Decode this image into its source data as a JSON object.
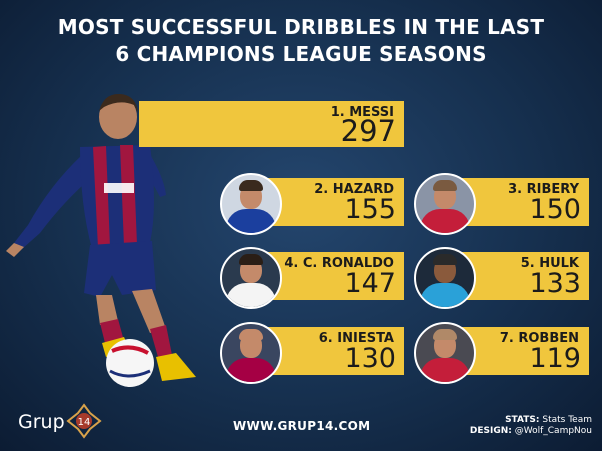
{
  "title": {
    "line1": "MOST SUCCESSFUL DRIBBLES IN THE LAST",
    "line2": "6 CHAMPIONS LEAGUE SEASONS"
  },
  "chart_data": {
    "type": "table",
    "title": "MOST SUCCESSFUL DRIBBLES IN THE LAST 6 CHAMPIONS LEAGUE SEASONS",
    "rows": [
      {
        "label": "1. MESSI",
        "value": 297
      },
      {
        "label": "2. HAZARD",
        "value": 155
      },
      {
        "label": "3. RIBERY",
        "value": 150
      },
      {
        "label": "4. C. RONALDO",
        "value": 147
      },
      {
        "label": "5. HULK",
        "value": 133
      },
      {
        "label": "6. INIESTA",
        "value": 130
      },
      {
        "label": "7. ROBBEN",
        "value": 119
      }
    ]
  },
  "avatars": [
    {
      "icon": "player-photo-icon",
      "kit": "#1b3f9e",
      "hair": "#3a2a1e"
    },
    {
      "icon": "player-photo-icon",
      "kit": "#c41e3a",
      "hair": "#7a5a40"
    },
    {
      "icon": "player-photo-icon",
      "kit": "#f4f4f4",
      "hair": "#2a1e16"
    },
    {
      "icon": "player-photo-icon",
      "kit": "#2aa1d8",
      "hair": "#2a2a2a"
    },
    {
      "icon": "player-photo-icon",
      "kit": "#a50044",
      "hair": "#c48a6a"
    },
    {
      "icon": "player-photo-icon",
      "kit": "#c41e3a",
      "hair": "#b08968"
    }
  ],
  "footer": {
    "logo_text": "Grup",
    "logo_number": "14",
    "url": "WWW.GRUP14.COM",
    "stats_label": "STATS:",
    "stats_value": "Stats Team",
    "design_label": "DESIGN:",
    "design_value": "@Wolf_CampNou"
  },
  "colors": {
    "card": "#f0c63d",
    "background": "#16304f",
    "text_on_card": "#1b1b1b"
  }
}
